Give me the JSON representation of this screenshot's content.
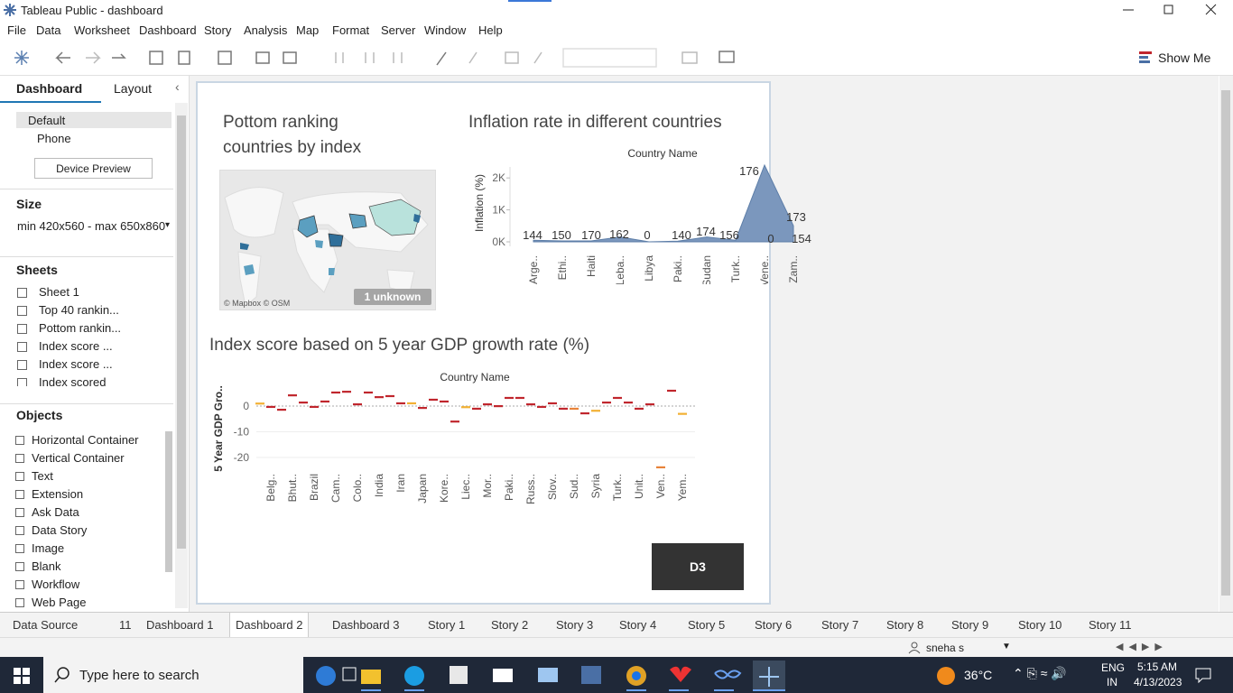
{
  "window": {
    "title": "Tableau Public - dashboard"
  },
  "menu": [
    "File",
    "Data",
    "Worksheet",
    "Dashboard",
    "Story",
    "Analysis",
    "Map",
    "Format",
    "Server",
    "Window",
    "Help"
  ],
  "toolbar": {
    "show_me": "Show Me"
  },
  "sidebar": {
    "tabs": [
      "Dashboard",
      "Layout"
    ],
    "devices": [
      "Default",
      "Phone"
    ],
    "device_preview": "Device Preview",
    "size_heading": "Size",
    "size_value": "min 420x560 - max 650x860",
    "sheets_heading": "Sheets",
    "sheets": [
      "Sheet 1",
      "Top 40 rankin...",
      "Pottom rankin...",
      "Index score ...",
      "Index score ...",
      "Index scored"
    ],
    "objects_heading": "Objects",
    "objects": [
      "Horizontal Container",
      "Vertical Container",
      "Text",
      "Extension",
      "Ask Data",
      "Data Story",
      "Image",
      "Blank",
      "Workflow",
      "Web Page"
    ]
  },
  "map": {
    "title": "Pottom ranking countries by index",
    "attribution": "© Mapbox © OSM",
    "badge": "1 unknown"
  },
  "chart_data": [
    {
      "type": "area",
      "title": "Inflation rate in different countries",
      "header": "Country Name",
      "y_label": "Inflation (%)",
      "categories": [
        "Arge..",
        "Ethi..",
        "Haiti",
        "Leba..",
        "Libya",
        "Paki..",
        "Sudan",
        "Turk..",
        "Vene..",
        "Zam.."
      ],
      "values": [
        50,
        30,
        30,
        150,
        0,
        20,
        150,
        50,
        2400,
        500
      ],
      "color": "#7b97bd",
      "ylim": [
        0,
        2400
      ],
      "yticks": [
        {
          "value": 0,
          "label": "0K"
        },
        {
          "value": 1000,
          "label": "1K"
        },
        {
          "value": 2000,
          "label": "2K"
        }
      ],
      "annotations": [
        144,
        150,
        170,
        162,
        0,
        140,
        174,
        156,
        176,
        0,
        173,
        154
      ]
    },
    {
      "type": "gantt",
      "title": "Index  score based on 5 year GDP growth rate (%)",
      "header": "Country Name",
      "y_label": "5 Year GDP Gro..",
      "categories": [
        null,
        "Belg..",
        null,
        "Bhut..",
        null,
        "Brazil",
        null,
        "Cam..",
        null,
        "Colo..",
        null,
        "India",
        null,
        "Iran",
        null,
        "Japan",
        null,
        "Kore..",
        null,
        "Liec..",
        null,
        "Mor..",
        null,
        "Paki..",
        null,
        "Russ..",
        null,
        "Slov..",
        null,
        "Sud..",
        null,
        "Syria",
        null,
        "Turk..",
        null,
        "Unit..",
        null,
        "Ven..",
        null,
        "Yem.."
      ],
      "values": [
        1,
        -0.3,
        -1.4,
        4.2,
        1.4,
        -0.3,
        1.8,
        5.3,
        5.6,
        0.7,
        5.3,
        3.5,
        3.9,
        1.1,
        1.1,
        -0.7,
        2.5,
        1.8,
        -6,
        -0.4,
        -1,
        0.7,
        0,
        3.2,
        3.2,
        0.7,
        -0.3,
        1.1,
        -1,
        -1,
        -2.8,
        -1.8,
        1.4,
        3.2,
        1.4,
        -1,
        0.7,
        -23.8,
        6,
        -3
      ],
      "colors": [
        "#f2b134",
        "#c0262d",
        "#c0262d",
        "#c0262d",
        "#c0262d",
        "#c0262d",
        "#c0262d",
        "#c0262d",
        "#c0262d",
        "#c0262d",
        "#c0262d",
        "#c0262d",
        "#c0262d",
        "#c0262d",
        "#f2b134",
        "#c0262d",
        "#c0262d",
        "#c0262d",
        "#c0262d",
        "#f2b134",
        "#c0262d",
        "#c0262d",
        "#c0262d",
        "#c0262d",
        "#c0262d",
        "#c0262d",
        "#c0262d",
        "#c0262d",
        "#c0262d",
        "#e8833a",
        "#c0262d",
        "#f2b134",
        "#c0262d",
        "#c0262d",
        "#c0262d",
        "#c0262d",
        "#c0262d",
        "#e8833a",
        "#c0262d",
        "#f2b134"
      ],
      "ylim": [
        -25,
        8
      ],
      "yticks": [
        0,
        -10,
        -20
      ],
      "grid": true
    }
  ],
  "button": "D3",
  "tabs": [
    "Data Source",
    "11",
    "Dashboard 1",
    "Dashboard 2",
    "Dashboard 3",
    "Story 1",
    "Story 2",
    "Story 3",
    "Story 4",
    "Story 5",
    "Story 6",
    "Story 7",
    "Story 8",
    "Story 9",
    "Story 10",
    "Story 11"
  ],
  "active_tab": "Dashboard 2",
  "status": {
    "user": "sneha s"
  },
  "taskbar": {
    "search": "Type here to search",
    "weather": "36°C",
    "lang": "ENG",
    "region": "IN",
    "time": "5:15 AM",
    "date": "4/13/2023"
  }
}
